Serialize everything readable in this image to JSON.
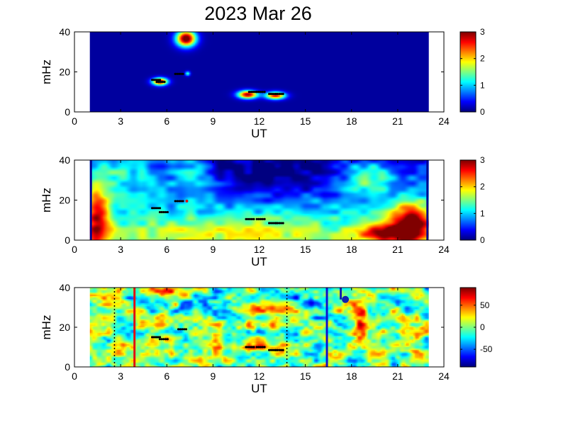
{
  "title": "2023 Mar 26",
  "chart_data": [
    {
      "type": "heatmap",
      "name": "panel-1",
      "xlabel": "UT",
      "ylabel": "mHz",
      "xlim": [
        0,
        24
      ],
      "ylim": [
        0,
        40
      ],
      "xticks": [
        "0",
        "3",
        "6",
        "9",
        "12",
        "15",
        "18",
        "21",
        "24"
      ],
      "yticks": [
        "0",
        "20",
        "40"
      ],
      "data_x_range": [
        1,
        23
      ],
      "colorbar": {
        "range": [
          0,
          3
        ],
        "ticks": [
          "0",
          "1",
          "2",
          "3"
        ]
      },
      "hotspots": [
        {
          "x": 7.2,
          "y": 36,
          "value": 3
        },
        {
          "x": 5.5,
          "y": 15.5,
          "value": 2.8
        },
        {
          "x": 11.2,
          "y": 9,
          "value": 2.8
        },
        {
          "x": 13,
          "y": 8.5,
          "value": 2.5
        }
      ],
      "markers": [
        {
          "x": 5.3,
          "y": 16
        },
        {
          "x": 5.6,
          "y": 15
        },
        {
          "x": 6.8,
          "y": 19
        },
        {
          "x": 11.6,
          "y": 10
        },
        {
          "x": 12.1,
          "y": 10
        },
        {
          "x": 12.9,
          "y": 9
        },
        {
          "x": 13.3,
          "y": 9
        }
      ]
    },
    {
      "type": "heatmap",
      "name": "panel-2",
      "xlabel": "UT",
      "ylabel": "mHz",
      "xlim": [
        0,
        24
      ],
      "ylim": [
        0,
        40
      ],
      "xticks": [
        "0",
        "3",
        "6",
        "9",
        "12",
        "15",
        "18",
        "21",
        "24"
      ],
      "yticks": [
        "0",
        "20",
        "40"
      ],
      "data_x_range": [
        1,
        23
      ],
      "colorbar": {
        "range": [
          0,
          3
        ],
        "ticks": [
          "0",
          "1",
          "2",
          "3"
        ]
      },
      "hotspots": [
        {
          "x": 1.5,
          "y": 10,
          "value": 3
        },
        {
          "x": 21.8,
          "y": 8,
          "value": 3
        },
        {
          "x": 20.5,
          "y": 5,
          "value": 2.5
        }
      ],
      "markers": [
        {
          "x": 5.3,
          "y": 16
        },
        {
          "x": 5.8,
          "y": 14
        },
        {
          "x": 6.8,
          "y": 19.5
        },
        {
          "x": 11.4,
          "y": 10.5
        },
        {
          "x": 12.1,
          "y": 10.5
        },
        {
          "x": 12.9,
          "y": 8.5
        },
        {
          "x": 13.3,
          "y": 8.5
        }
      ],
      "red_points": [
        {
          "x": 7.3,
          "y": 19.5
        }
      ]
    },
    {
      "type": "heatmap",
      "name": "panel-3",
      "xlabel": "UT",
      "ylabel": "mHz",
      "xlim": [
        0,
        24
      ],
      "ylim": [
        0,
        40
      ],
      "xticks": [
        "0",
        "3",
        "6",
        "9",
        "12",
        "15",
        "18",
        "21",
        "24"
      ],
      "yticks": [
        "0",
        "20",
        "40"
      ],
      "data_x_range": [
        1,
        23
      ],
      "colorbar": {
        "range": [
          -90,
          90
        ],
        "ticks": [
          "50",
          "0",
          "-50"
        ]
      },
      "vertical_lines": [
        {
          "x": 3.9,
          "color": "#e01010",
          "style": "solid"
        },
        {
          "x": 16.4,
          "color": "#1010d0",
          "style": "solid"
        },
        {
          "x": 2.6,
          "color": "#000000",
          "style": "dotted"
        },
        {
          "x": 13.8,
          "color": "#000000",
          "style": "dotted"
        }
      ],
      "markers": [
        {
          "x": 5.3,
          "y": 15
        },
        {
          "x": 5.8,
          "y": 14
        },
        {
          "x": 7.0,
          "y": 19
        },
        {
          "x": 11.4,
          "y": 10
        },
        {
          "x": 12.1,
          "y": 10
        },
        {
          "x": 12.9,
          "y": 8.5
        },
        {
          "x": 13.3,
          "y": 8.5
        }
      ],
      "blue_points": [
        {
          "x": 17.6,
          "y": 34
        }
      ]
    }
  ]
}
